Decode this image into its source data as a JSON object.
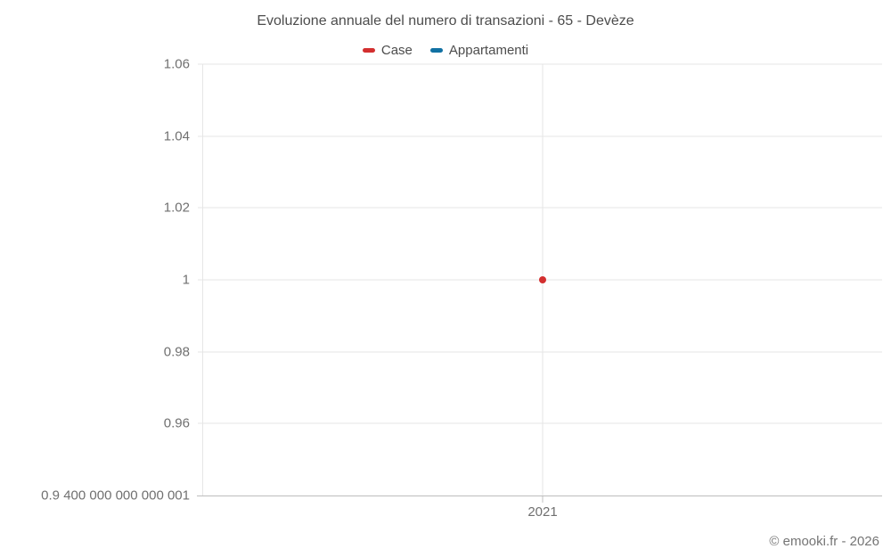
{
  "footer": {
    "credit": "© emooki.fr - 2026"
  },
  "colors": {
    "case_red": "#d32f2f",
    "appartamenti_blue": "#1171a3",
    "gridline": "#e6e6e6",
    "axis_line": "#bdbdbd",
    "title_text": "#4d4d4d",
    "tick_text": "#707070"
  },
  "chart_data": {
    "type": "scatter",
    "title": "Evoluzione annuale del numero di transazioni - 65 - Devèze",
    "categories": [
      "2021"
    ],
    "series": [
      {
        "name": "Case",
        "color": "#d32f2f",
        "points": [
          {
            "category": "2021",
            "y": 1
          }
        ]
      },
      {
        "name": "Appartamenti",
        "color": "#1171a3",
        "points": []
      }
    ],
    "ylim": [
      0.94,
      1.06
    ],
    "y_ticks": [
      {
        "value": 1.06,
        "label": "1.06"
      },
      {
        "value": 1.04,
        "label": "1.04"
      },
      {
        "value": 1.02,
        "label": "1.02"
      },
      {
        "value": 1.0,
        "label": "1"
      },
      {
        "value": 0.98,
        "label": "0.98"
      },
      {
        "value": 0.96,
        "label": "0.96"
      },
      {
        "value": 0.94,
        "label": "0.9 400 000 000 000 001"
      }
    ],
    "x_ticks": [
      "2021"
    ],
    "legend_position": "top",
    "grid": true,
    "xlabel": "",
    "ylabel": ""
  }
}
